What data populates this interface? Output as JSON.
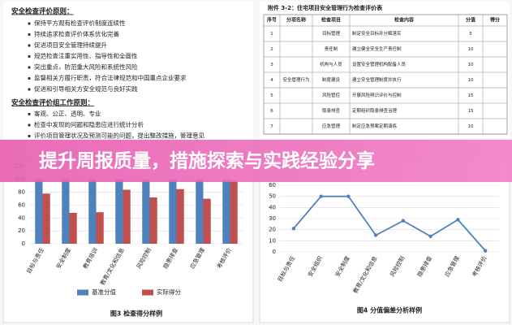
{
  "document": {
    "heading1": "安全检查评价原则：",
    "list1": [
      "保持平方观有检查评价制度连续性",
      "持续追求检查评价体系优化完善",
      "促进项目安全管理持续提升",
      "规范检查注重实用性、指导性和全面性",
      "突出重点，防范重大风险和系统性风险",
      "监督相关方履行职责，符合法律规范和中国重点企业要求",
      "促进和引导相关方安全规范与良好实践"
    ],
    "heading2": "安全检查评价组工作原则：",
    "list2": [
      "客观、公正、透明、专业",
      "检查中发现的问题和隐患应进行统计分析",
      "评价项目管理状况及预测可能的问题，提出整改措施，管理意见"
    ]
  },
  "table": {
    "title": "附件 3-2：住宅项目安全管理行为检查评价表",
    "headers": [
      "序号",
      "分项名称",
      "检查项目",
      "检查内容",
      "分值",
      "得分"
    ],
    "rows": [
      [
        "1",
        null,
        "目标管理",
        "制定安全目标并分解落实",
        "5",
        null
      ],
      [
        "2",
        null,
        "责任制",
        "建立健全安全生产责任制",
        "10",
        null
      ],
      [
        "3",
        null,
        "机构与人员",
        "设置安全管理机构配备人员",
        "10",
        null
      ],
      [
        "4",
        "安全管理行为",
        "制度建设",
        "建立安全管理制度并执行",
        "10",
        null
      ],
      [
        "5",
        null,
        "风险管控",
        "开展风险辨识评价与控制",
        "15",
        null
      ],
      [
        "6",
        null,
        "隐患排查",
        "定期组织隐患排查治理",
        "15",
        null
      ],
      [
        "7",
        null,
        "应急管理",
        "制定应急预案定期演练",
        "10",
        null
      ]
    ]
  },
  "banner": {
    "title": "提升周报质量，措施探索与实践经验分享"
  },
  "chart_data": [
    {
      "type": "bar",
      "caption": "图3 检查得分样例",
      "categories": [
        "目标与责任",
        "安全制度",
        "教育培训",
        "教育/文化和信息",
        "风险控制",
        "隐患排查",
        "应急管理",
        "考核评价"
      ],
      "series": [
        {
          "name": "基准分值",
          "color": "#4f81bd",
          "values": [
            100,
            100,
            100,
            100,
            100,
            100,
            100,
            100
          ]
        },
        {
          "name": "实际得分",
          "color": "#c0504d",
          "values": [
            78,
            48,
            49,
            84,
            72,
            85,
            70,
            98
          ]
        }
      ],
      "ylim": [
        0,
        120
      ],
      "yticks": [
        0,
        20,
        40,
        60,
        80,
        100,
        120
      ],
      "grid": true
    },
    {
      "type": "line",
      "caption": "图4 分值偏差分析样例",
      "categories": [
        "目标与责任",
        "安全组织",
        "安全制度",
        "教育/文化和信息",
        "风险控制",
        "隐患排查",
        "应急管理",
        "考核评价"
      ],
      "series": [
        {
          "name": "分值偏差",
          "color": "#4f81bd",
          "values": [
            21,
            50,
            50,
            15,
            28,
            14,
            29,
            1
          ]
        }
      ],
      "ylim": [
        0,
        60
      ],
      "yticks": [
        0,
        10,
        20,
        30,
        40,
        50,
        60
      ],
      "grid": true
    }
  ]
}
